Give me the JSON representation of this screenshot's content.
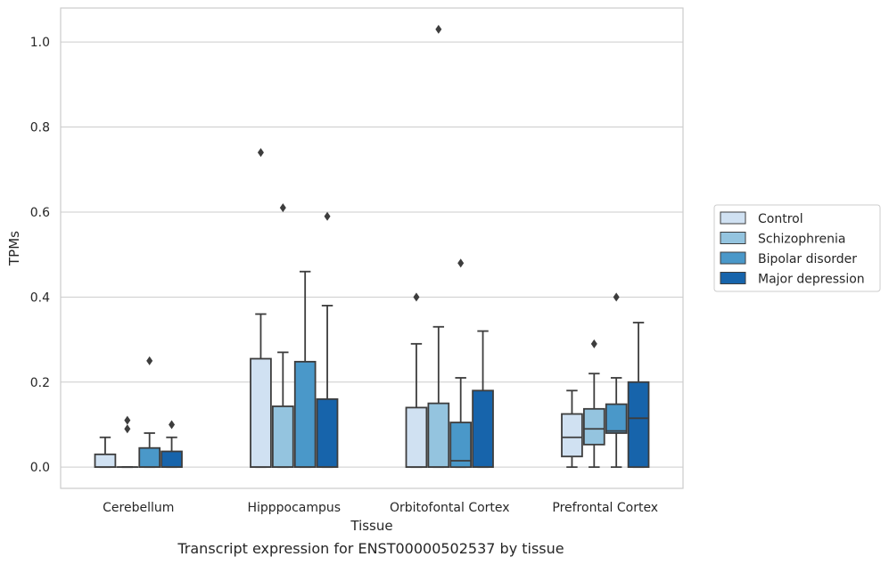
{
  "caption": "Transcript expression for ENST00000502537 by tissue",
  "chart_data": {
    "type": "box",
    "xlabel": "Tissue",
    "ylabel": "TPMs",
    "ylim": [
      -0.05,
      1.08
    ],
    "yticks": [
      "0.0",
      "0.2",
      "0.4",
      "0.6",
      "0.8",
      "1.0"
    ],
    "grid": "horizontal",
    "legend_position": "right",
    "categories": [
      "Cerebellum",
      "Hipppocampus",
      "Orbitofontal Cortex",
      "Prefrontal Cortex"
    ],
    "series": [
      {
        "name": "Control",
        "color": "#d0e1f2",
        "boxes": [
          {
            "q1": 0.0,
            "median": 0.0,
            "q3": 0.03,
            "whislo": 0.0,
            "whishi": 0.07,
            "fliers": []
          },
          {
            "q1": 0.0,
            "median": 0.0,
            "q3": 0.255,
            "whislo": 0.0,
            "whishi": 0.36,
            "fliers": [
              0.74
            ]
          },
          {
            "q1": 0.0,
            "median": 0.0,
            "q3": 0.14,
            "whislo": 0.0,
            "whishi": 0.29,
            "fliers": [
              0.4
            ]
          },
          {
            "q1": 0.025,
            "median": 0.07,
            "q3": 0.125,
            "whislo": 0.0,
            "whishi": 0.18,
            "fliers": []
          }
        ]
      },
      {
        "name": "Schizophrenia",
        "color": "#94c4df",
        "boxes": [
          {
            "q1": 0.0,
            "median": 0.0,
            "q3": 0.0,
            "whislo": 0.0,
            "whishi": 0.0,
            "fliers": [
              0.09,
              0.11
            ]
          },
          {
            "q1": 0.0,
            "median": 0.0,
            "q3": 0.143,
            "whislo": 0.0,
            "whishi": 0.27,
            "fliers": [
              0.61
            ]
          },
          {
            "q1": 0.0,
            "median": 0.0,
            "q3": 0.15,
            "whislo": 0.0,
            "whishi": 0.33,
            "fliers": [
              1.03
            ]
          },
          {
            "q1": 0.053,
            "median": 0.09,
            "q3": 0.137,
            "whislo": 0.0,
            "whishi": 0.22,
            "fliers": [
              0.29
            ]
          }
        ]
      },
      {
        "name": "Bipolar disorder",
        "color": "#4a98c9",
        "boxes": [
          {
            "q1": 0.0,
            "median": 0.0,
            "q3": 0.045,
            "whislo": 0.0,
            "whishi": 0.08,
            "fliers": [
              0.25
            ]
          },
          {
            "q1": 0.0,
            "median": 0.0,
            "q3": 0.248,
            "whislo": 0.0,
            "whishi": 0.46,
            "fliers": []
          },
          {
            "q1": 0.0,
            "median": 0.015,
            "q3": 0.105,
            "whislo": 0.0,
            "whishi": 0.21,
            "fliers": [
              0.48
            ]
          },
          {
            "q1": 0.08,
            "median": 0.085,
            "q3": 0.148,
            "whislo": 0.0,
            "whishi": 0.21,
            "fliers": [
              0.4
            ]
          }
        ]
      },
      {
        "name": "Major depression",
        "color": "#1764ab",
        "boxes": [
          {
            "q1": 0.0,
            "median": 0.0,
            "q3": 0.037,
            "whislo": 0.0,
            "whishi": 0.07,
            "fliers": [
              0.1
            ]
          },
          {
            "q1": 0.0,
            "median": 0.0,
            "q3": 0.16,
            "whislo": 0.0,
            "whishi": 0.38,
            "fliers": [
              0.59
            ]
          },
          {
            "q1": 0.0,
            "median": 0.0,
            "q3": 0.18,
            "whislo": 0.0,
            "whishi": 0.32,
            "fliers": []
          },
          {
            "q1": 0.0,
            "median": 0.115,
            "q3": 0.2,
            "whislo": 0.0,
            "whishi": 0.34,
            "fliers": []
          }
        ]
      }
    ]
  }
}
